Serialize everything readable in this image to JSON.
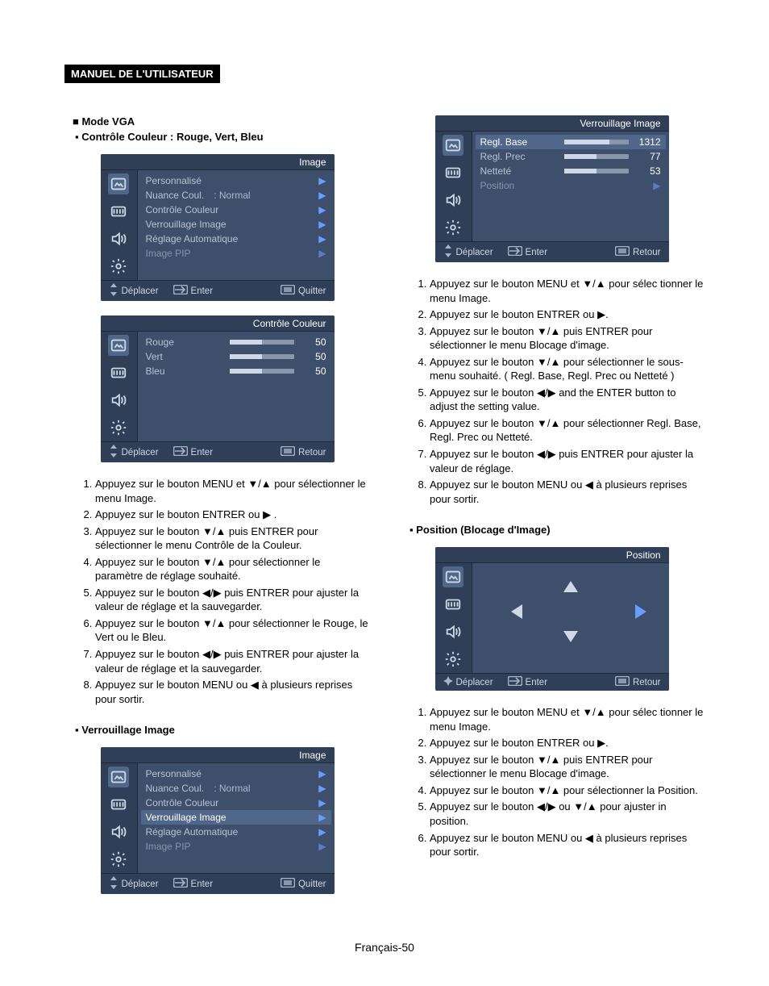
{
  "header": {
    "label": "MANUEL DE L'UTILISATEUR"
  },
  "page_number": "Français-50",
  "left": {
    "mode_title": "Mode VGA",
    "ctrl_color_title": "Contrôle Couleur : Rouge, Vert, Bleu",
    "image_lock_title": "Verrouillage Image",
    "osd_image": {
      "title": "Image",
      "items": [
        {
          "label": "Personnalisé",
          "arrow": true
        },
        {
          "label": "Nuance Coul.",
          "mid": ": Normal",
          "arrow": true
        },
        {
          "label": "Contrôle Couleur",
          "arrow": true
        },
        {
          "label": "Verrouillage Image",
          "arrow": true
        },
        {
          "label": "Réglage Automatique",
          "arrow": true
        },
        {
          "label": "Image PIP",
          "arrow": true,
          "dim": true
        }
      ],
      "footer": {
        "move": "Déplacer",
        "enter": "Enter",
        "exit": "Quitter"
      }
    },
    "osd_color": {
      "title": "Contrôle Couleur",
      "items": [
        {
          "label": "Rouge",
          "value": "50",
          "fill": 50
        },
        {
          "label": "Vert",
          "value": "50",
          "fill": 50
        },
        {
          "label": "Bleu",
          "value": "50",
          "fill": 50
        }
      ],
      "footer": {
        "move": "Déplacer",
        "enter": "Enter",
        "exit": "Retour"
      }
    },
    "osd_image2": {
      "title": "Image",
      "items": [
        {
          "label": "Personnalisé",
          "arrow": true
        },
        {
          "label": "Nuance Coul.",
          "mid": ": Normal",
          "arrow": true
        },
        {
          "label": "Contrôle Couleur",
          "arrow": true
        },
        {
          "label": "Verrouillage Image",
          "arrow": true,
          "hl": true
        },
        {
          "label": "Réglage Automatique",
          "arrow": true
        },
        {
          "label": "Image PIP",
          "arrow": true,
          "dim": true
        }
      ],
      "footer": {
        "move": "Déplacer",
        "enter": "Enter",
        "exit": "Quitter"
      }
    },
    "instr_color": [
      "Appuyez sur le bouton MENU et ▼/▲ pour sélectionner le menu Image.",
      "Appuyez sur le bouton ENTRER ou ▶ .",
      "Appuyez sur le bouton ▼/▲ puis ENTRER pour sélectionner le menu Contrôle de la Couleur.",
      "Appuyez sur le bouton ▼/▲ pour sélectionner le paramètre de réglage souhaité.",
      "Appuyez sur le bouton ◀/▶ puis ENTRER pour ajuster la valeur de réglage et la sauvegarder.",
      "Appuyez sur le bouton ▼/▲ pour sélectionner le Rouge, le Vert ou le Bleu.",
      "Appuyez sur le bouton ◀/▶ puis ENTRER pour ajuster la valeur de réglage et la sauvegarder.",
      "Appuyez sur le bouton MENU ou ◀ à plusieurs reprises pour sortir."
    ]
  },
  "right": {
    "osd_lock": {
      "title": "Verrouillage Image",
      "items": [
        {
          "label": "Regl. Base",
          "value": "1312",
          "fill": 70,
          "hl": true
        },
        {
          "label": "Regl. Prec",
          "value": "77",
          "fill": 50
        },
        {
          "label": "Netteté",
          "value": "53",
          "fill": 50
        },
        {
          "label": "Position",
          "arrow": true,
          "dim": true
        }
      ],
      "footer": {
        "move": "Déplacer",
        "enter": "Enter",
        "exit": "Retour"
      }
    },
    "instr_lock": [
      "Appuyez sur le bouton MENU et ▼/▲ pour sélec tionner le menu Image.",
      "Appuyez sur le bouton ENTRER ou ▶.",
      "Appuyez sur le bouton  ▼/▲ puis ENTRER pour sélectionner le menu Blocage d'image.",
      "Appuyez sur le bouton ▼/▲ pour sélectionner le sous-menu souhaité. ( Regl. Base, Regl. Prec ou Netteté )",
      "Appuyez sur le bouton ◀/▶ and the ENTER button to adjust the                           setting value.",
      "Appuyez sur le bouton ▼/▲ pour sélectionner Regl. Base, Regl. Prec ou Netteté.",
      "Appuyez sur le bouton ◀/▶ puis ENTRER pour   ajuster la valeur de réglage.",
      "Appuyez sur le bouton MENU ou ◀ à plusieurs reprises pour sortir."
    ],
    "position_title": "Position (Blocage d'Image)",
    "osd_position": {
      "title": "Position",
      "footer": {
        "move": "Déplacer",
        "enter": "Enter",
        "exit": "Retour"
      }
    },
    "instr_position": [
      "Appuyez sur le bouton MENU et ▼/▲ pour sélec tionner le menu Image.",
      "Appuyez sur le bouton ENTRER ou ▶.",
      "Appuyez sur le bouton ▼/▲ puis ENTRER pour sélectionner le menu Blocage d'image.",
      "Appuyez sur le bouton ▼/▲ pour sélectionner la Position.",
      "Appuyez sur le bouton ◀/▶ ou  ▼/▲  pour ajuster in position.",
      "Appuyez sur le bouton MENU ou ◀ à plusieurs  reprises pour sortir."
    ]
  },
  "icons": {
    "image": "<svg viewBox='0 0 24 24' fill='none' stroke='currentColor' stroke-width='2'><rect x='3' y='5' width='18' height='14' rx='2'/><path d='M7 15l3-4 3 3 2-2 3 4'/></svg>",
    "sliders": "<svg viewBox='0 0 24 24' fill='none' stroke='currentColor' stroke-width='2'><rect x='3' y='6' width='18' height='12' rx='2'/><path d='M6 9v6M10 9v6M14 9v6M18 9v6'/></svg>",
    "sound": "<svg viewBox='0 0 24 24' fill='none' stroke='currentColor' stroke-width='2'><path d='M4 9v6h4l5 4V5L8 9H4z'/><path d='M16 8c1.5 1.5 1.5 6.5 0 8M19 6c3 3 3 9 0 12'/></svg>",
    "gear": "<svg viewBox='0 0 24 24' fill='none' stroke='currentColor' stroke-width='2'><circle cx='12' cy='12' r='3'/><path d='M12 2v3M12 19v3M4.2 4.2l2.1 2.1M17.7 17.7l2.1 2.1M2 12h3M19 12h3M4.2 19.8l2.1-2.1M17.7 6.3l2.1-2.1'/></svg>",
    "updown": "<svg viewBox='0 0 12 16' fill='currentColor'><path d='M6 0l4 5H2zM6 16l-4-5h8z'/></svg>",
    "enter": "<svg viewBox='0 0 18 12' fill='none' stroke='currentColor' stroke-width='1.6'><path d='M2 6h12M10 2l4 4-4 4'/><rect x='0.5' y='0.5' width='17' height='11' rx='2'/></svg>",
    "menu": "<svg viewBox='0 0 18 12' fill='none' stroke='currentColor' stroke-width='1.6'><rect x='0.5' y='0.5' width='17' height='11' rx='2'/><path d='M4 4h10M4 6h10M4 8h10'/></svg>",
    "cross": "<svg viewBox='0 0 12 12' fill='currentColor'><path d='M6 0l2 4 4 2-4 2-2 4-2-4-4-2 4-2z'/></svg>"
  }
}
